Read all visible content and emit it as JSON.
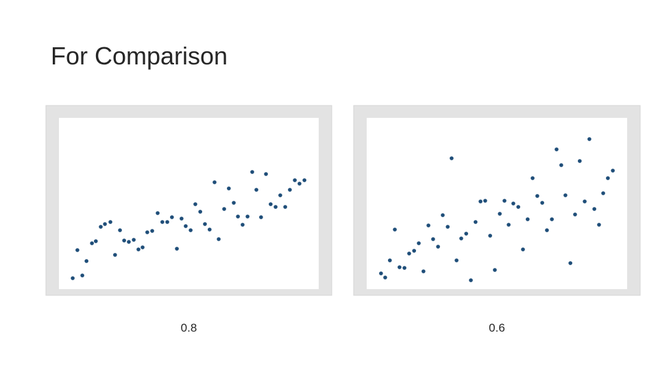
{
  "title": "For Comparison",
  "chart_data": [
    {
      "type": "scatter",
      "caption": "0.8",
      "color": "#1f4e79",
      "xlim": [
        0,
        100
      ],
      "ylim": [
        0,
        100
      ],
      "x": [
        5.3,
        7.1,
        9.0,
        10.6,
        12.7,
        14.2,
        16.1,
        17.7,
        19.8,
        21.6,
        23.5,
        25.1,
        26.9,
        28.8,
        30.6,
        32.2,
        34.0,
        35.9,
        38.0,
        39.8,
        41.7,
        43.5,
        45.4,
        47.2,
        48.8,
        50.7,
        52.5,
        54.4,
        56.2,
        58.0,
        59.9,
        61.5,
        63.6,
        65.4,
        67.3,
        68.9,
        70.7,
        72.6,
        74.4,
        76.0,
        77.8,
        79.7,
        81.5,
        83.4,
        85.2,
        87.1,
        88.9,
        90.8,
        92.6,
        94.5
      ],
      "y": [
        6.4,
        22.8,
        8.0,
        16.4,
        26.8,
        28.0,
        36.4,
        38.0,
        39.2,
        20.0,
        34.4,
        28.4,
        27.6,
        28.8,
        23.2,
        24.4,
        33.2,
        34.0,
        44.4,
        39.2,
        39.2,
        42.0,
        23.6,
        41.2,
        36.8,
        34.4,
        49.6,
        45.2,
        38.0,
        34.8,
        62.4,
        29.2,
        46.8,
        58.8,
        50.4,
        42.4,
        37.6,
        42.4,
        68.4,
        58.0,
        42.0,
        67.2,
        49.6,
        48.0,
        54.8,
        48.0,
        58.0,
        63.6,
        61.6,
        63.6
      ]
    },
    {
      "type": "scatter",
      "caption": "0.6",
      "color": "#1f4e79",
      "xlim": [
        0,
        100
      ],
      "ylim": [
        0,
        100
      ],
      "x": [
        5.5,
        7.1,
        8.9,
        10.8,
        12.6,
        14.5,
        16.3,
        18.2,
        20.0,
        21.8,
        23.7,
        25.5,
        27.4,
        29.2,
        31.1,
        32.6,
        34.5,
        36.3,
        38.2,
        40.0,
        41.8,
        43.7,
        45.5,
        47.4,
        49.2,
        51.1,
        52.9,
        54.5,
        56.3,
        58.2,
        60.0,
        61.8,
        63.7,
        65.5,
        67.4,
        69.2,
        71.1,
        72.9,
        74.7,
        76.3,
        78.2,
        80.0,
        81.8,
        83.7,
        85.5,
        87.4,
        89.2,
        90.8,
        92.6,
        94.5
      ],
      "y": [
        9.2,
        6.8,
        16.8,
        34.8,
        12.8,
        12.4,
        20.8,
        22.4,
        26.8,
        10.4,
        37.2,
        29.2,
        24.8,
        43.2,
        36.4,
        76.4,
        16.8,
        29.6,
        32.4,
        5.2,
        39.2,
        51.2,
        51.6,
        31.2,
        11.2,
        44.0,
        51.6,
        37.6,
        50.0,
        48.0,
        23.2,
        40.8,
        64.8,
        54.4,
        50.4,
        34.4,
        40.8,
        81.6,
        72.4,
        54.8,
        15.2,
        43.6,
        74.8,
        51.2,
        87.6,
        46.8,
        37.6,
        56.0,
        64.8,
        69.2
      ]
    }
  ]
}
